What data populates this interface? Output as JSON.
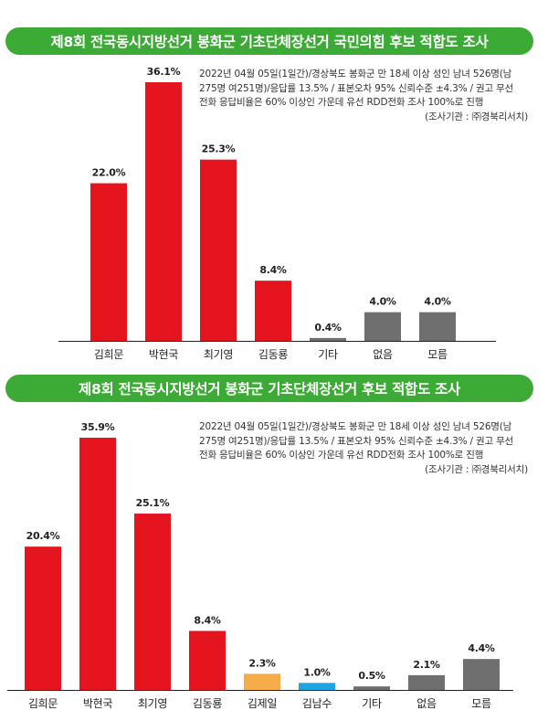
{
  "chart_data": [
    {
      "type": "bar",
      "title": "제8회 전국동시지방선거 봉화군 기초단체장선거 국민의힘 후보 적합도 조사",
      "note_lines": [
        "2022년 04월 05일(1일간)/경상북도 봉화군 만 18세 이상 성인 남녀 526명(남",
        "275명 여251명)/응답률 13.5% / 표본오차 95% 신뢰수준 ±4.3% / 권고 무선",
        "전화 응답비율은 60% 이상인 가운데 유선 RDD전화 조사 100%로 진행"
      ],
      "source": "(조사기관 : ㈜경북리서치)",
      "categories": [
        "김희문",
        "박현국",
        "최기영",
        "김동룡",
        "기타",
        "없음",
        "모름"
      ],
      "values": [
        22.0,
        36.1,
        25.3,
        8.4,
        0.4,
        4.0,
        4.0
      ],
      "labels": [
        "22.0%",
        "36.1%",
        "25.3%",
        "8.4%",
        "0.4%",
        "4.0%",
        "4.0%"
      ],
      "colors": [
        "#e4151f",
        "#e4151f",
        "#e4151f",
        "#e4151f",
        "#6f6f6f",
        "#6f6f6f",
        "#6f6f6f"
      ],
      "ylim": [
        0,
        36.1
      ]
    },
    {
      "type": "bar",
      "title": "제8회 전국동시지방선거 봉화군 기초단체장선거 후보 적합도 조사",
      "note_lines": [
        "2022년 04월 05일(1일간)/경상북도 봉화군 만 18세 이상 성인 남녀 526명(남",
        "275명 여251명)/응답률 13.5% / 표본오차 95% 신뢰수준 ±4.3% / 권고 무선",
        "전화 응답비율은 60% 이상인 가운데 유선 RDD전화 조사 100%로 진행"
      ],
      "source": "(조사기관 : ㈜경북리서치)",
      "categories": [
        "김희문",
        "박현국",
        "최기영",
        "김동룡",
        "김제일",
        "김남수",
        "기타",
        "없음",
        "모름"
      ],
      "values": [
        20.4,
        35.9,
        25.1,
        8.4,
        2.3,
        1.0,
        0.5,
        2.1,
        4.4
      ],
      "labels": [
        "20.4%",
        "35.9%",
        "25.1%",
        "8.4%",
        "2.3%",
        "1.0%",
        "0.5%",
        "2.1%",
        "4.4%"
      ],
      "colors": [
        "#e4151f",
        "#e4151f",
        "#e4151f",
        "#e4151f",
        "#f5ad4a",
        "#1ea6e0",
        "#6f6f6f",
        "#6f6f6f",
        "#6f6f6f"
      ],
      "ylim": [
        0,
        35.9
      ]
    }
  ]
}
